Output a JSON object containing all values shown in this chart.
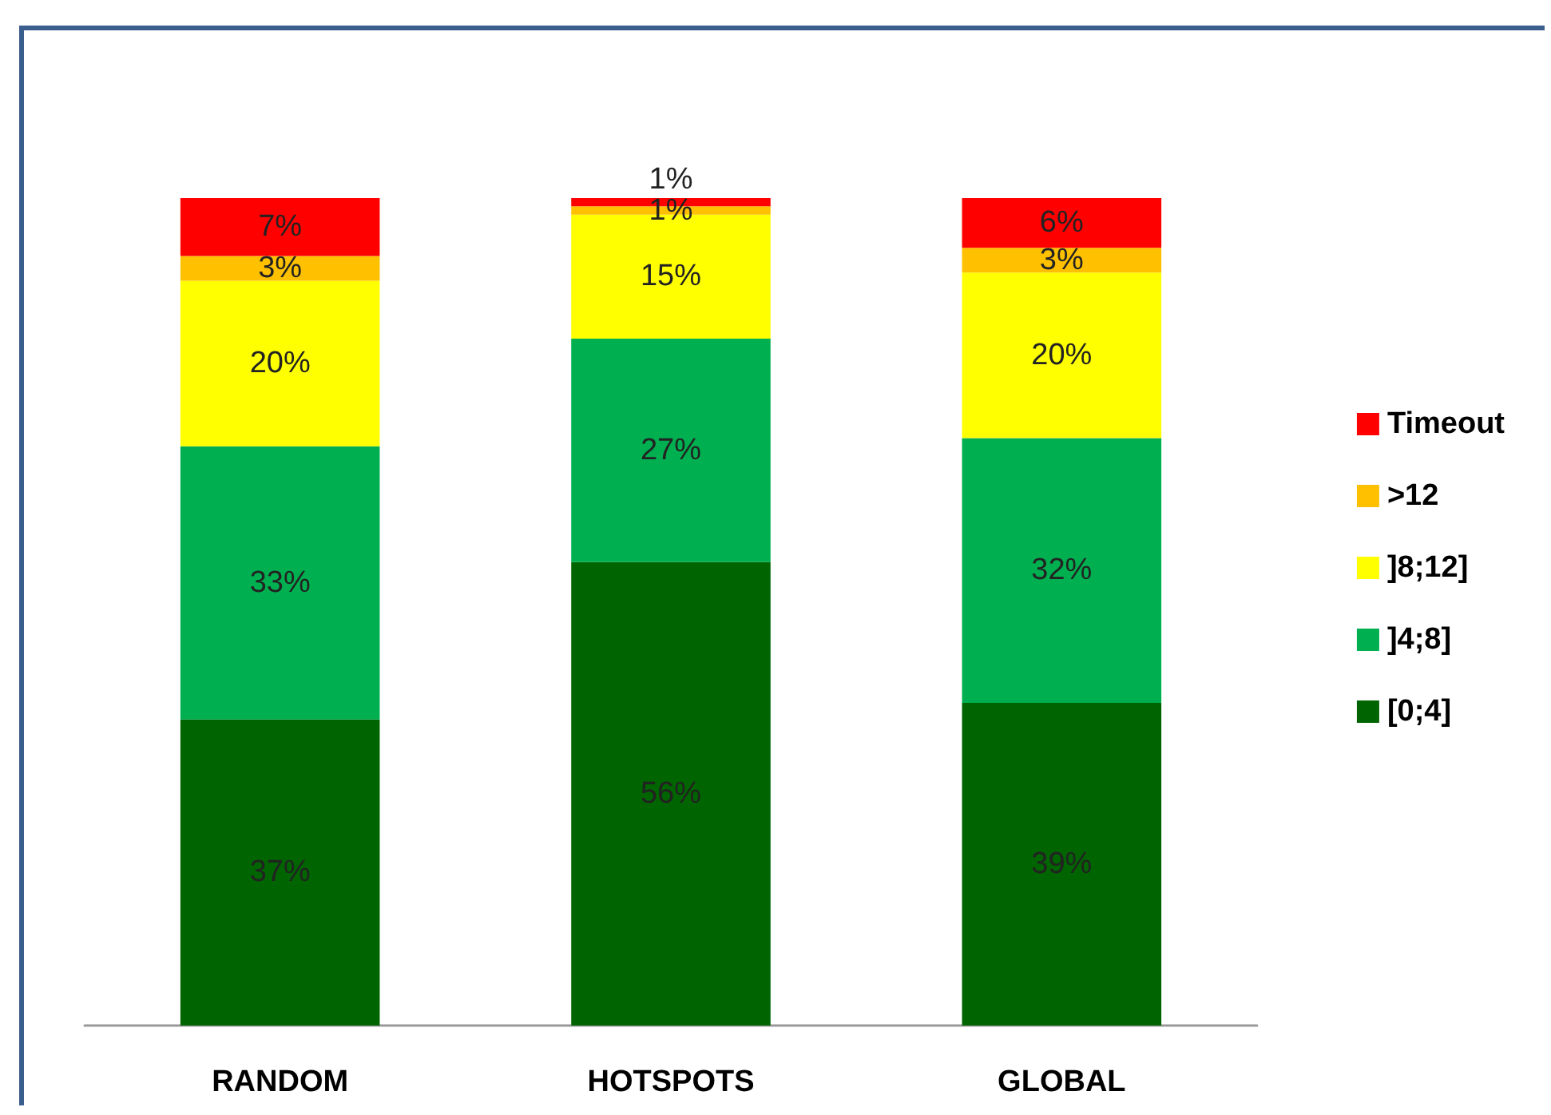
{
  "chart_data": {
    "type": "bar",
    "stacked": true,
    "categories": [
      "RANDOM",
      "HOTSPOTS",
      "GLOBAL"
    ],
    "series": [
      {
        "name": "[0;4]",
        "color": "#006400",
        "values": [
          37,
          56,
          39
        ],
        "value_labels": [
          "37%",
          "56%",
          "39%"
        ]
      },
      {
        "name": "]4;8]",
        "color": "#00b050",
        "values": [
          33,
          27,
          32
        ],
        "value_labels": [
          "33%",
          "27%",
          "32%"
        ]
      },
      {
        "name": "]8;12]",
        "color": "#ffff00",
        "values": [
          20,
          15,
          20
        ],
        "value_labels": [
          "20%",
          "15%",
          "20%"
        ]
      },
      {
        "name": ">12",
        "color": "#ffc000",
        "values": [
          3,
          1,
          3
        ],
        "value_labels": [
          "3%",
          "1%",
          "3%"
        ]
      },
      {
        "name": "Timeout",
        "color": "#ff0000",
        "values": [
          7,
          1,
          6
        ],
        "value_labels": [
          "7%",
          "1%",
          "6%"
        ]
      }
    ],
    "ylim": [
      0,
      100
    ],
    "tick_labels": "x",
    "legend": "right"
  }
}
